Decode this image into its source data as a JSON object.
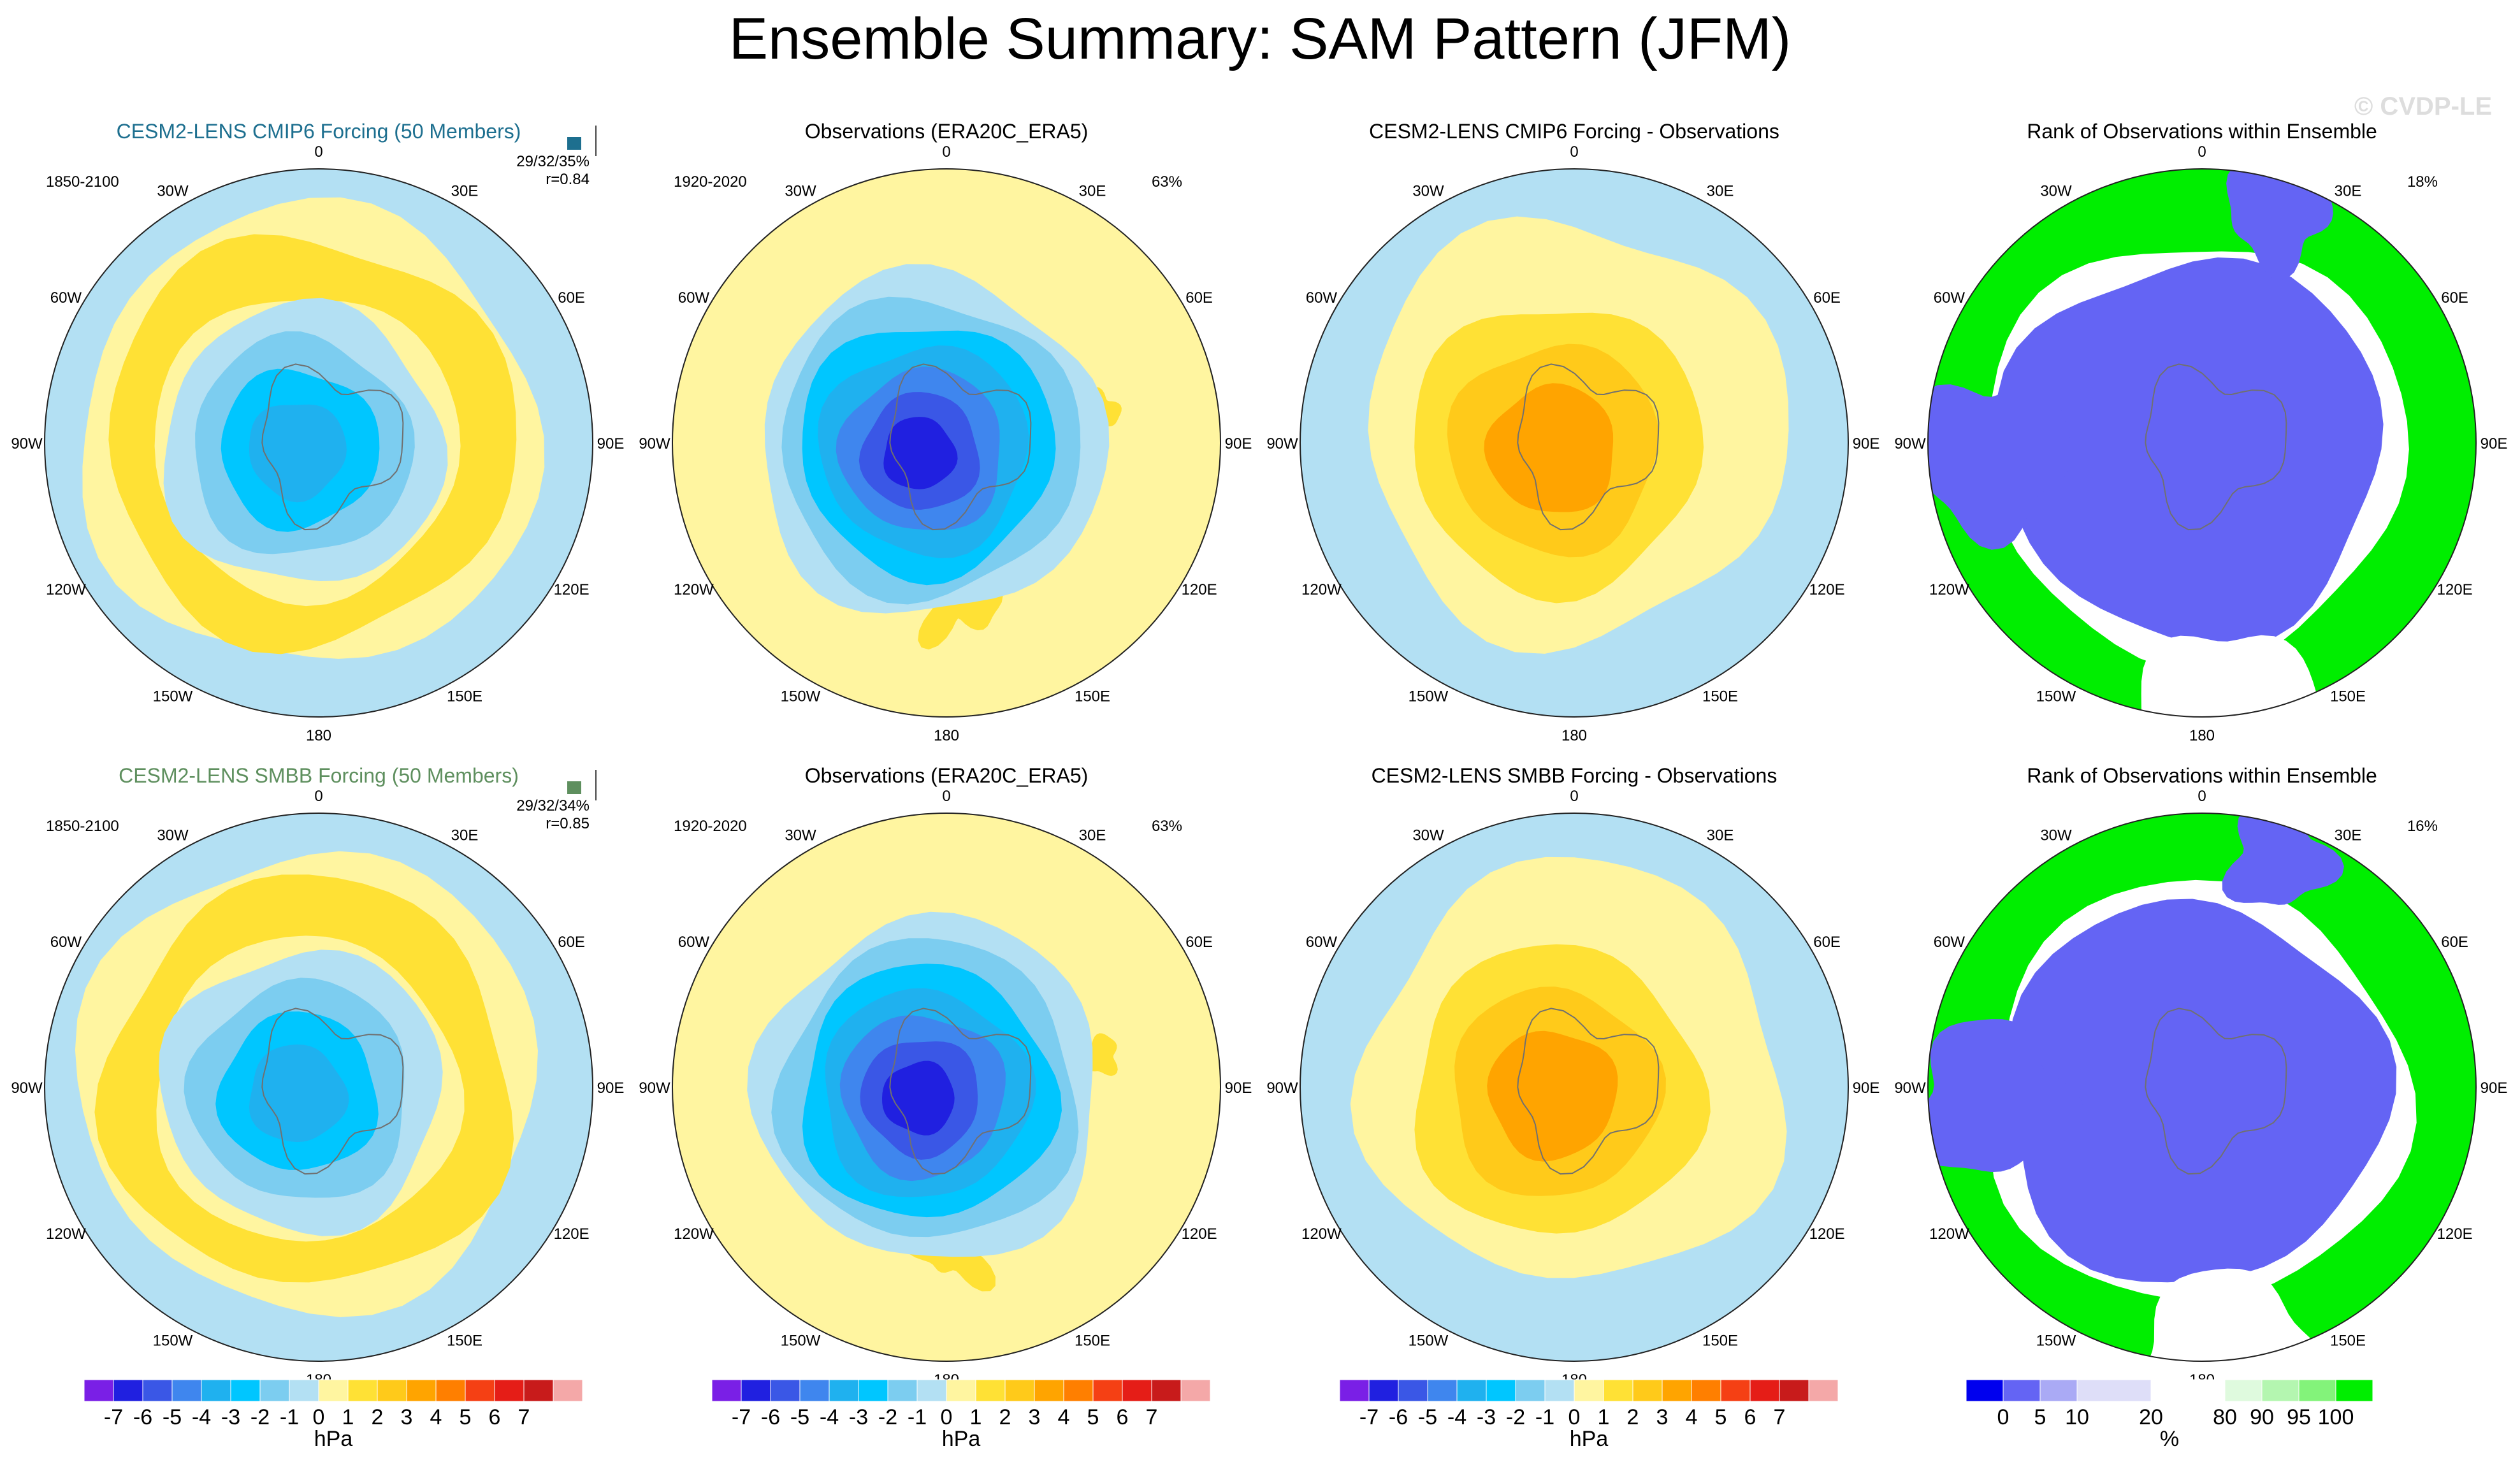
{
  "figure": {
    "title": "Ensemble Summary: SAM Pattern (JFM)",
    "watermark": "© CVDP-LE"
  },
  "colors": {
    "anomaly_levels": [
      "#7a1fe6",
      "#2020e0",
      "#3a57e6",
      "#3f86ee",
      "#1fb1ef",
      "#00c6ff",
      "#7ccdf0",
      "#b3e0f3",
      "#fff5a0",
      "#ffe135",
      "#ffca1a",
      "#ffa400",
      "#ff7f00",
      "#f54014",
      "#e51d17",
      "#c81b1b",
      "#f4a8a8"
    ],
    "rank_levels": [
      "#0000ee",
      "#6464f4",
      "#aaaaf5",
      "#dedef8",
      "#ffffff",
      "#dffade",
      "#b4f6b0",
      "#83f37a",
      "#00ee00"
    ],
    "model1_title": "#1d6f8f",
    "model2_title": "#5e8f5e",
    "land": "#707070"
  },
  "chart_data": [
    {
      "panel": "model-cmip6",
      "type": "heatmap",
      "projection": "south-polar-stereographic",
      "title": "CESM2-LENS CMIP6 Forcing (50 Members)",
      "period": "1850-2100",
      "stats": "29/32/35%",
      "corr": "r=0.84",
      "pattern": {
        "center_value": -3.5,
        "ring_value": 1.5,
        "outer_value": -0.5
      }
    },
    {
      "panel": "obs-1",
      "type": "heatmap",
      "projection": "south-polar-stereographic",
      "title": "Observations (ERA20C_ERA5)",
      "period": "1920-2020",
      "pct": "63%",
      "pattern": {
        "center_value": -6.5,
        "ring_value": 0.5,
        "outer_value": 0.5
      }
    },
    {
      "panel": "diff-cmip6",
      "type": "heatmap",
      "projection": "south-polar-stereographic",
      "title": "CESM2-LENS CMIP6 Forcing - Observations",
      "pattern": {
        "center_value": 3.5,
        "ring_value": 1.5,
        "outer_value": -0.5
      }
    },
    {
      "panel": "rank-cmip6",
      "type": "heatmap",
      "projection": "south-polar-stereographic",
      "title": "Rank of Observations within Ensemble",
      "pct": "18%",
      "pattern": {
        "center_value": 0,
        "ring_value": 100,
        "outer_value": 100
      }
    },
    {
      "panel": "model-smbb",
      "type": "heatmap",
      "projection": "south-polar-stereographic",
      "title": "CESM2-LENS SMBB Forcing (50 Members)",
      "period": "1850-2100",
      "stats": "29/32/34%",
      "corr": "r=0.85",
      "pattern": {
        "center_value": -3.5,
        "ring_value": 1.5,
        "outer_value": -0.5
      }
    },
    {
      "panel": "obs-2",
      "type": "heatmap",
      "projection": "south-polar-stereographic",
      "title": "Observations (ERA20C_ERA5)",
      "period": "1920-2020",
      "pct": "63%",
      "pattern": {
        "center_value": -6.5,
        "ring_value": 0.5,
        "outer_value": 0.5
      }
    },
    {
      "panel": "diff-smbb",
      "type": "heatmap",
      "projection": "south-polar-stereographic",
      "title": "CESM2-LENS SMBB Forcing - Observations",
      "pattern": {
        "center_value": 3.5,
        "ring_value": 1.5,
        "outer_value": -0.5
      }
    },
    {
      "panel": "rank-smbb",
      "type": "heatmap",
      "projection": "south-polar-stereographic",
      "title": "Rank of Observations within Ensemble",
      "pct": "16%",
      "pattern": {
        "center_value": 0,
        "ring_value": 100,
        "outer_value": 100
      }
    }
  ],
  "meridian_labels": [
    "0",
    "30E",
    "60E",
    "90E",
    "120E",
    "150E",
    "180",
    "150W",
    "120W",
    "90W",
    "60W",
    "30W"
  ],
  "anomaly_colorbar": {
    "ticks": [
      "-7",
      "-6",
      "-5",
      "-4",
      "-3",
      "-2",
      "-1",
      "0",
      "1",
      "2",
      "3",
      "4",
      "5",
      "6",
      "7"
    ],
    "unit": "hPa"
  },
  "rank_colorbar": {
    "ticks": [
      "0",
      "5",
      "10",
      "20",
      "80",
      "90",
      "95",
      "100"
    ],
    "unit": "%"
  }
}
